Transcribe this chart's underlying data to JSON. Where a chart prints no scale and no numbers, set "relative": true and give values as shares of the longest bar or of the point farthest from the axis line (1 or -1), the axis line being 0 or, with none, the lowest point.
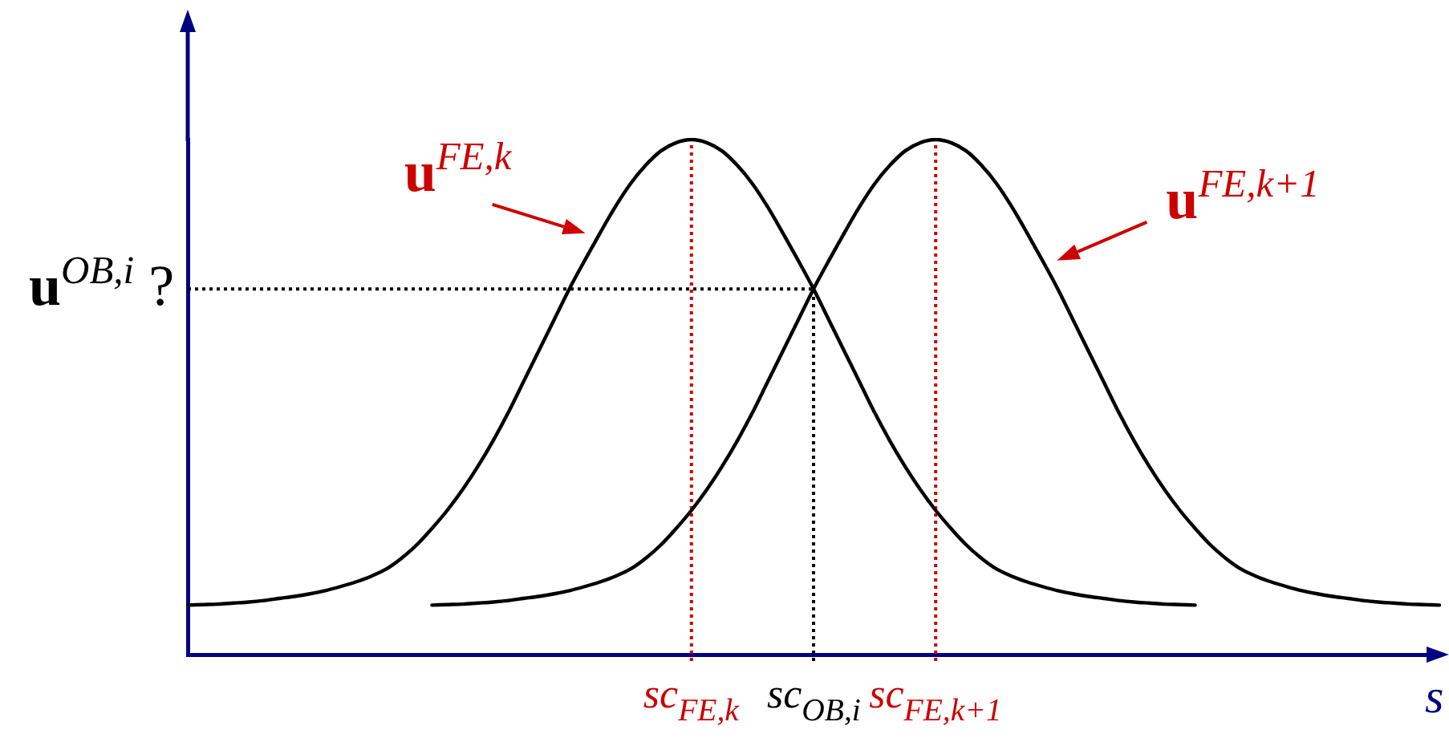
{
  "chart_data": {
    "type": "line",
    "relative": true,
    "xlabel": "s",
    "categories": [
      null,
      null,
      null,
      null,
      null,
      null,
      null,
      null,
      null,
      null,
      null,
      null,
      null,
      null,
      null,
      null,
      null,
      null,
      null,
      null,
      null,
      null,
      null,
      null,
      null,
      null,
      null,
      null,
      null,
      null,
      null,
      null,
      null,
      "sc$_{FE,k}$",
      null,
      null,
      null,
      null,
      null,
      null,
      null,
      "sc$_{OB,i}$",
      null,
      null,
      null,
      null,
      null,
      null,
      null,
      "sc$_{FE,k+1}$",
      null,
      null,
      null,
      null,
      null,
      null,
      null,
      null,
      null,
      null,
      null,
      null,
      null,
      null,
      null,
      null,
      null,
      null,
      null,
      null,
      null,
      null,
      null,
      null,
      null,
      null,
      null,
      null,
      null,
      null,
      null,
      null,
      null
    ],
    "series": [
      {
        "name": "u$^{FE,k}$",
        "color": "#000000",
        "values": [
          0.096,
          0.097,
          0.098,
          0.1,
          0.102,
          0.105,
          0.109,
          0.113,
          0.118,
          0.124,
          0.132,
          0.141,
          0.152,
          0.166,
          0.187,
          0.213,
          0.245,
          0.28,
          0.32,
          0.365,
          0.415,
          0.47,
          0.53,
          0.59,
          0.65,
          0.71,
          0.765,
          0.818,
          0.869,
          0.914,
          0.95,
          0.978,
          0.994,
          1,
          0.994,
          0.978,
          0.95,
          0.914,
          0.869,
          0.818,
          0.765,
          0.71,
          0.65,
          0.59,
          0.53,
          0.47,
          0.415,
          0.365,
          0.32,
          0.28,
          0.245,
          0.213,
          0.187,
          0.166,
          0.152,
          0.141,
          0.132,
          0.124,
          0.118,
          0.113,
          0.109,
          0.105,
          0.102,
          0.1,
          0.098,
          0.097,
          0.096,
          null,
          null,
          null,
          null,
          null,
          null,
          null,
          null,
          null,
          null,
          null,
          null,
          null,
          null,
          null,
          null
        ]
      },
      {
        "name": "u$^{FE,k+1}$",
        "color": "#000000",
        "values": [
          null,
          null,
          null,
          null,
          null,
          null,
          null,
          null,
          null,
          null,
          null,
          null,
          null,
          null,
          null,
          null,
          0.096,
          0.097,
          0.098,
          0.1,
          0.102,
          0.105,
          0.109,
          0.113,
          0.118,
          0.124,
          0.132,
          0.141,
          0.152,
          0.166,
          0.187,
          0.213,
          0.245,
          0.28,
          0.32,
          0.365,
          0.415,
          0.47,
          0.53,
          0.59,
          0.65,
          0.71,
          0.765,
          0.818,
          0.869,
          0.914,
          0.95,
          0.978,
          0.994,
          1,
          0.994,
          0.978,
          0.95,
          0.914,
          0.869,
          0.818,
          0.765,
          0.71,
          0.65,
          0.59,
          0.53,
          0.47,
          0.415,
          0.365,
          0.32,
          0.28,
          0.245,
          0.213,
          0.187,
          0.166,
          0.152,
          0.141,
          0.132,
          0.124,
          0.118,
          0.113,
          0.109,
          0.105,
          0.102,
          0.1,
          0.098,
          0.097,
          0.096
        ]
      }
    ],
    "ref_lines": [
      {
        "axis": "y",
        "value": 0.71,
        "label": "u$^{OB,i}$ ?",
        "color": "#000000",
        "line_style": "dotted"
      },
      {
        "axis": "x",
        "value": "sc$_{FE,k}$",
        "color": "#cc0000",
        "line_style": "dotted"
      },
      {
        "axis": "x",
        "value": "sc$_{OB,i}$",
        "color": "#000000",
        "line_style": "dotted"
      },
      {
        "axis": "x",
        "value": "sc$_{FE,k+1}$",
        "color": "#cc0000",
        "line_style": "dotted"
      }
    ]
  }
}
